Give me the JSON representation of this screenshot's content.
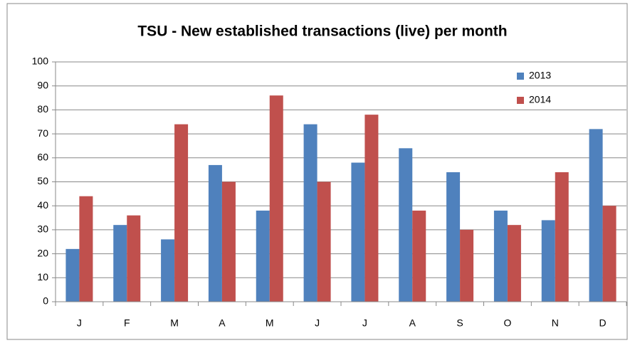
{
  "chart_data": {
    "type": "bar",
    "title": "TSU - New established transactions (live) per month",
    "categories": [
      "J",
      "F",
      "M",
      "A",
      "M",
      "J",
      "J",
      "A",
      "S",
      "O",
      "N",
      "D"
    ],
    "series": [
      {
        "name": "2013",
        "color": "#4f81bd",
        "values": [
          22,
          32,
          26,
          57,
          38,
          74,
          58,
          64,
          54,
          38,
          34,
          72
        ]
      },
      {
        "name": "2014",
        "color": "#c0504d",
        "values": [
          44,
          36,
          74,
          50,
          86,
          50,
          78,
          38,
          30,
          32,
          54,
          40
        ]
      }
    ],
    "ylim": [
      0,
      100
    ],
    "yticks": [
      0,
      10,
      20,
      30,
      40,
      50,
      60,
      70,
      80,
      90,
      100
    ],
    "grid": true,
    "legend": "top-right"
  }
}
